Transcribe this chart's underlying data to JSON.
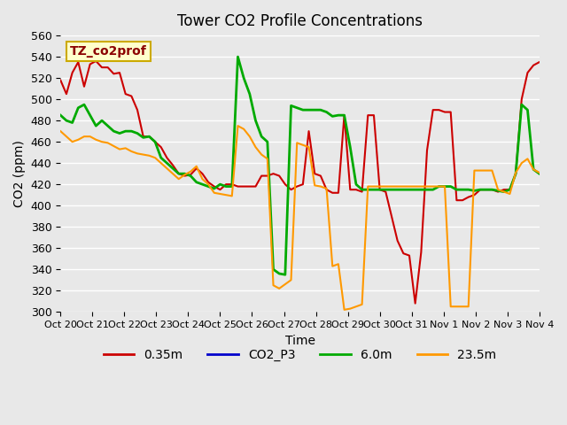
{
  "title": "Tower CO2 Profile Concentrations",
  "xlabel": "Time",
  "ylabel": "CO2 (ppm)",
  "ylim": [
    300,
    560
  ],
  "x_labels": [
    "Oct 20",
    "Oct 21",
    "Oct 22",
    "Oct 23",
    "Oct 24",
    "Oct 25",
    "Oct 26",
    "Oct 27",
    "Oct 28",
    "Oct 29",
    "Oct 30",
    "Oct 31",
    "Nov 1",
    "Nov 2",
    "Nov 3",
    "Nov 4"
  ],
  "background_color": "#e8e8e8",
  "plot_bg_color": "#e8e8e8",
  "annotation_text": "TZ_co2prof",
  "annotation_bg": "#ffffcc",
  "annotation_border": "#ccaa00",
  "series": {
    "0.35m": {
      "color": "#cc0000",
      "linewidth": 1.5,
      "values": [
        518,
        505,
        525,
        535,
        512,
        533,
        536,
        530,
        530,
        524,
        525,
        505,
        503,
        490,
        465,
        465,
        460,
        455,
        445,
        438,
        430,
        428,
        429,
        435,
        430,
        422,
        418,
        415,
        420,
        420,
        418,
        418,
        418,
        418,
        428,
        428,
        430,
        428,
        420,
        415,
        418,
        420,
        470,
        430,
        428,
        415,
        412,
        412,
        485,
        415,
        415,
        413,
        485,
        485,
        415,
        413,
        390,
        367,
        355,
        353,
        308,
        356,
        452,
        490,
        490,
        488,
        488,
        405,
        405,
        408,
        410,
        415,
        415,
        415,
        413,
        415,
        415,
        430,
        500,
        525,
        532,
        535
      ]
    },
    "CO2_P3": {
      "color": "#0000cc",
      "linewidth": 1.5,
      "values": []
    },
    "6.0m": {
      "color": "#00aa00",
      "linewidth": 2.0,
      "values": [
        485,
        480,
        478,
        492,
        495,
        485,
        475,
        480,
        475,
        470,
        468,
        470,
        470,
        468,
        464,
        465,
        460,
        445,
        440,
        435,
        430,
        430,
        428,
        422,
        420,
        418,
        416,
        420,
        418,
        418,
        540,
        520,
        505,
        480,
        465,
        460,
        340,
        336,
        335,
        494,
        492,
        490,
        490,
        490,
        490,
        488,
        484,
        485,
        485,
        455,
        420,
        415,
        415,
        415,
        415,
        415,
        415,
        415,
        415,
        415,
        415,
        415,
        415,
        415,
        418,
        418,
        418,
        415,
        415,
        415,
        414,
        415,
        415,
        415,
        414,
        413,
        415,
        430,
        495,
        490,
        434,
        430
      ]
    },
    "23.5m": {
      "color": "#ff9900",
      "linewidth": 1.5,
      "values": [
        470,
        465,
        460,
        462,
        465,
        465,
        462,
        460,
        459,
        456,
        453,
        454,
        451,
        449,
        448,
        447,
        445,
        440,
        435,
        430,
        425,
        429,
        432,
        437,
        425,
        420,
        412,
        411,
        410,
        409,
        475,
        472,
        465,
        455,
        448,
        444,
        325,
        322,
        326,
        330,
        459,
        457,
        455,
        419,
        418,
        416,
        343,
        345,
        302,
        303,
        305,
        307,
        418,
        418,
        418,
        418,
        418,
        418,
        418,
        418,
        418,
        418,
        418,
        418,
        418,
        418,
        305,
        305,
        305,
        305,
        433,
        433,
        433,
        433,
        415,
        413,
        411,
        431,
        440,
        444,
        434,
        431
      ]
    }
  }
}
